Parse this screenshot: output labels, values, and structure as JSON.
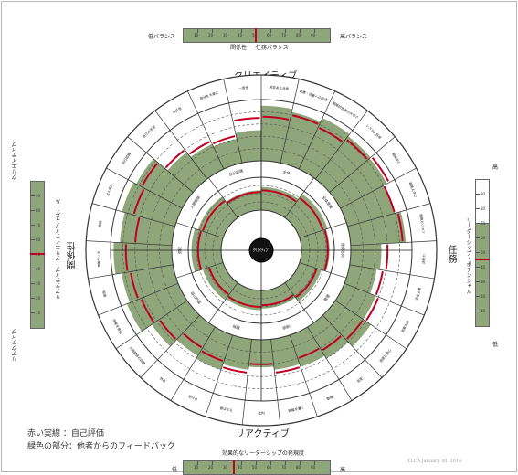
{
  "top_scale": {
    "title": "関係性 － 任務バランス",
    "left_label": "低バランス",
    "right_label": "高バランス",
    "ticks": [
      "10",
      "20",
      "30",
      "40",
      "50",
      "60",
      "70",
      "80",
      "90"
    ],
    "marker_value": 50
  },
  "bottom_scale": {
    "title": "効果的なリーダーシップの発現度",
    "left_label": "低",
    "right_label": "高",
    "ticks": [
      "10",
      "20",
      "30",
      "40",
      "50",
      "60",
      "70",
      "80",
      "90"
    ],
    "marker_value": 35
  },
  "left_scale": {
    "title": "リアクティブ－クリエイティブ スケール",
    "top_label": "クリエイティブ",
    "bottom_label": "リアクティブ",
    "ticks": [
      "90",
      "80",
      "70",
      "60",
      "50",
      "40",
      "30",
      "20",
      "10"
    ],
    "marker_value": 50
  },
  "right_scale": {
    "title": "リーダーシップ・ポテンシャル",
    "top_label": "高",
    "bottom_label": "低",
    "ticks": [
      "90",
      "80",
      "70",
      "60",
      "50",
      "40",
      "30",
      "20",
      "10"
    ],
    "marker_value": 45
  },
  "axis_labels": {
    "top": "クリエイティブ",
    "bottom": "リアクティブ",
    "left": "関係性",
    "right": "任務"
  },
  "center_label": "ｸﾘｴｲﾃｨﾌﾞ",
  "outer_segments": [
    {
      "label": "高潔ある決意"
    },
    {
      "label": "目標・背景への配慮"
    },
    {
      "label": "戦略的思考の大切さ"
    },
    {
      "label": "システム思考"
    },
    {
      "label": "戦略中心"
    },
    {
      "label": "戦略人中心"
    },
    {
      "label": "戦略ビジョン"
    },
    {
      "label": "決断力"
    },
    {
      "label": "完全主義"
    },
    {
      "label": "成果主義"
    },
    {
      "label": "過度な野心"
    },
    {
      "label": "支配"
    },
    {
      "label": "傲慢"
    },
    {
      "label": "距離を置く"
    },
    {
      "label": "批判"
    },
    {
      "label": "喜ばせる"
    },
    {
      "label": "受け身"
    },
    {
      "label": "依存"
    },
    {
      "label": "人間関係の調整"
    },
    {
      "label": "他者を育成"
    },
    {
      "label": "指導"
    },
    {
      "label": "チーム構築"
    },
    {
      "label": "協調"
    },
    {
      "label": "対人能力"
    },
    {
      "label": "自己認識"
    },
    {
      "label": "自己の学習"
    },
    {
      "label": "真正性"
    },
    {
      "label": "自分を大事に"
    },
    {
      "label": "一貫性"
    }
  ],
  "inner_segments": [
    {
      "label": "全体"
    },
    {
      "label": "全体意識"
    },
    {
      "label": "達成志向"
    },
    {
      "label": "管理"
    },
    {
      "label": "統制"
    },
    {
      "label": "保護"
    },
    {
      "label": "自己防衛"
    },
    {
      "label": "追従"
    },
    {
      "label": "人間関係"
    },
    {
      "label": "自己認識"
    }
  ],
  "legend": {
    "red_line": "赤い実線 ：自己評価",
    "green_area": "緑色の部分：他者からのフィードバック"
  },
  "footer_note": "TLCA January 30, 2014",
  "colors": {
    "green": "#8ea67a",
    "red": "#c00020",
    "line": "#333333"
  },
  "outer_values": [
    {
      "other": 90,
      "self": 72
    },
    {
      "other": 85,
      "self": 80
    },
    {
      "other": 92,
      "self": 75
    },
    {
      "other": 88,
      "self": 82
    },
    {
      "other": 86,
      "self": 90
    },
    {
      "other": 80,
      "self": 80
    },
    {
      "other": 90,
      "self": 85
    },
    {
      "other": 50,
      "self": 60
    },
    {
      "other": 45,
      "self": 55
    },
    {
      "other": 55,
      "self": 60
    },
    {
      "other": 70,
      "self": 55
    },
    {
      "other": 60,
      "self": 45
    },
    {
      "other": 55,
      "self": 40
    },
    {
      "other": 50,
      "self": 55
    },
    {
      "other": 45,
      "self": 40
    },
    {
      "other": 50,
      "self": 55
    },
    {
      "other": 60,
      "self": 45
    },
    {
      "other": 55,
      "self": 40
    },
    {
      "other": 70,
      "self": 55
    },
    {
      "other": 90,
      "self": 65
    },
    {
      "other": 85,
      "self": 70
    },
    {
      "other": 95,
      "self": 75
    },
    {
      "other": 85,
      "self": 60
    },
    {
      "other": 90,
      "self": 70
    },
    {
      "other": 85,
      "self": 75
    },
    {
      "other": 55,
      "self": 60
    },
    {
      "other": 45,
      "self": 50
    },
    {
      "other": 40,
      "self": 45
    },
    {
      "other": 50,
      "self": 70
    }
  ],
  "inner_values": [
    {
      "other": 70,
      "self": 60
    },
    {
      "other": 90,
      "self": 75
    },
    {
      "other": 85,
      "self": 80
    },
    {
      "other": 70,
      "self": 55
    },
    {
      "other": 55,
      "self": 45
    },
    {
      "other": 60,
      "self": 50
    },
    {
      "other": 65,
      "self": 45
    },
    {
      "other": 90,
      "self": 70
    },
    {
      "other": 80,
      "self": 65
    },
    {
      "other": 60,
      "self": 55
    }
  ]
}
